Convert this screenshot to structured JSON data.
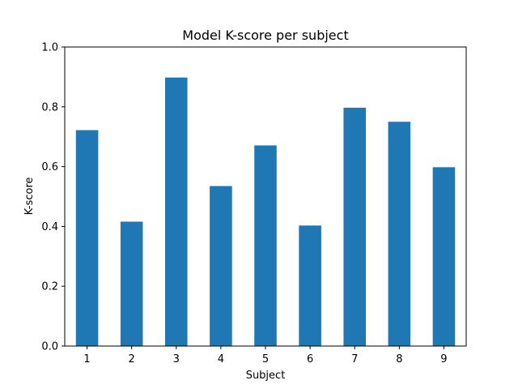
{
  "chart_data": {
    "type": "bar",
    "title": "Model K-score per subject",
    "xlabel": "Subject",
    "ylabel": "K-score",
    "categories": [
      "1",
      "2",
      "3",
      "4",
      "5",
      "6",
      "7",
      "8",
      "9"
    ],
    "values": [
      0.722,
      0.416,
      0.898,
      0.535,
      0.671,
      0.403,
      0.797,
      0.75,
      0.598
    ],
    "ylim": [
      0,
      1.0
    ],
    "yticks": [
      "0.0",
      "0.2",
      "0.4",
      "0.6",
      "0.8",
      "1.0"
    ],
    "grid": false,
    "bar_color": "#1f77b4"
  }
}
